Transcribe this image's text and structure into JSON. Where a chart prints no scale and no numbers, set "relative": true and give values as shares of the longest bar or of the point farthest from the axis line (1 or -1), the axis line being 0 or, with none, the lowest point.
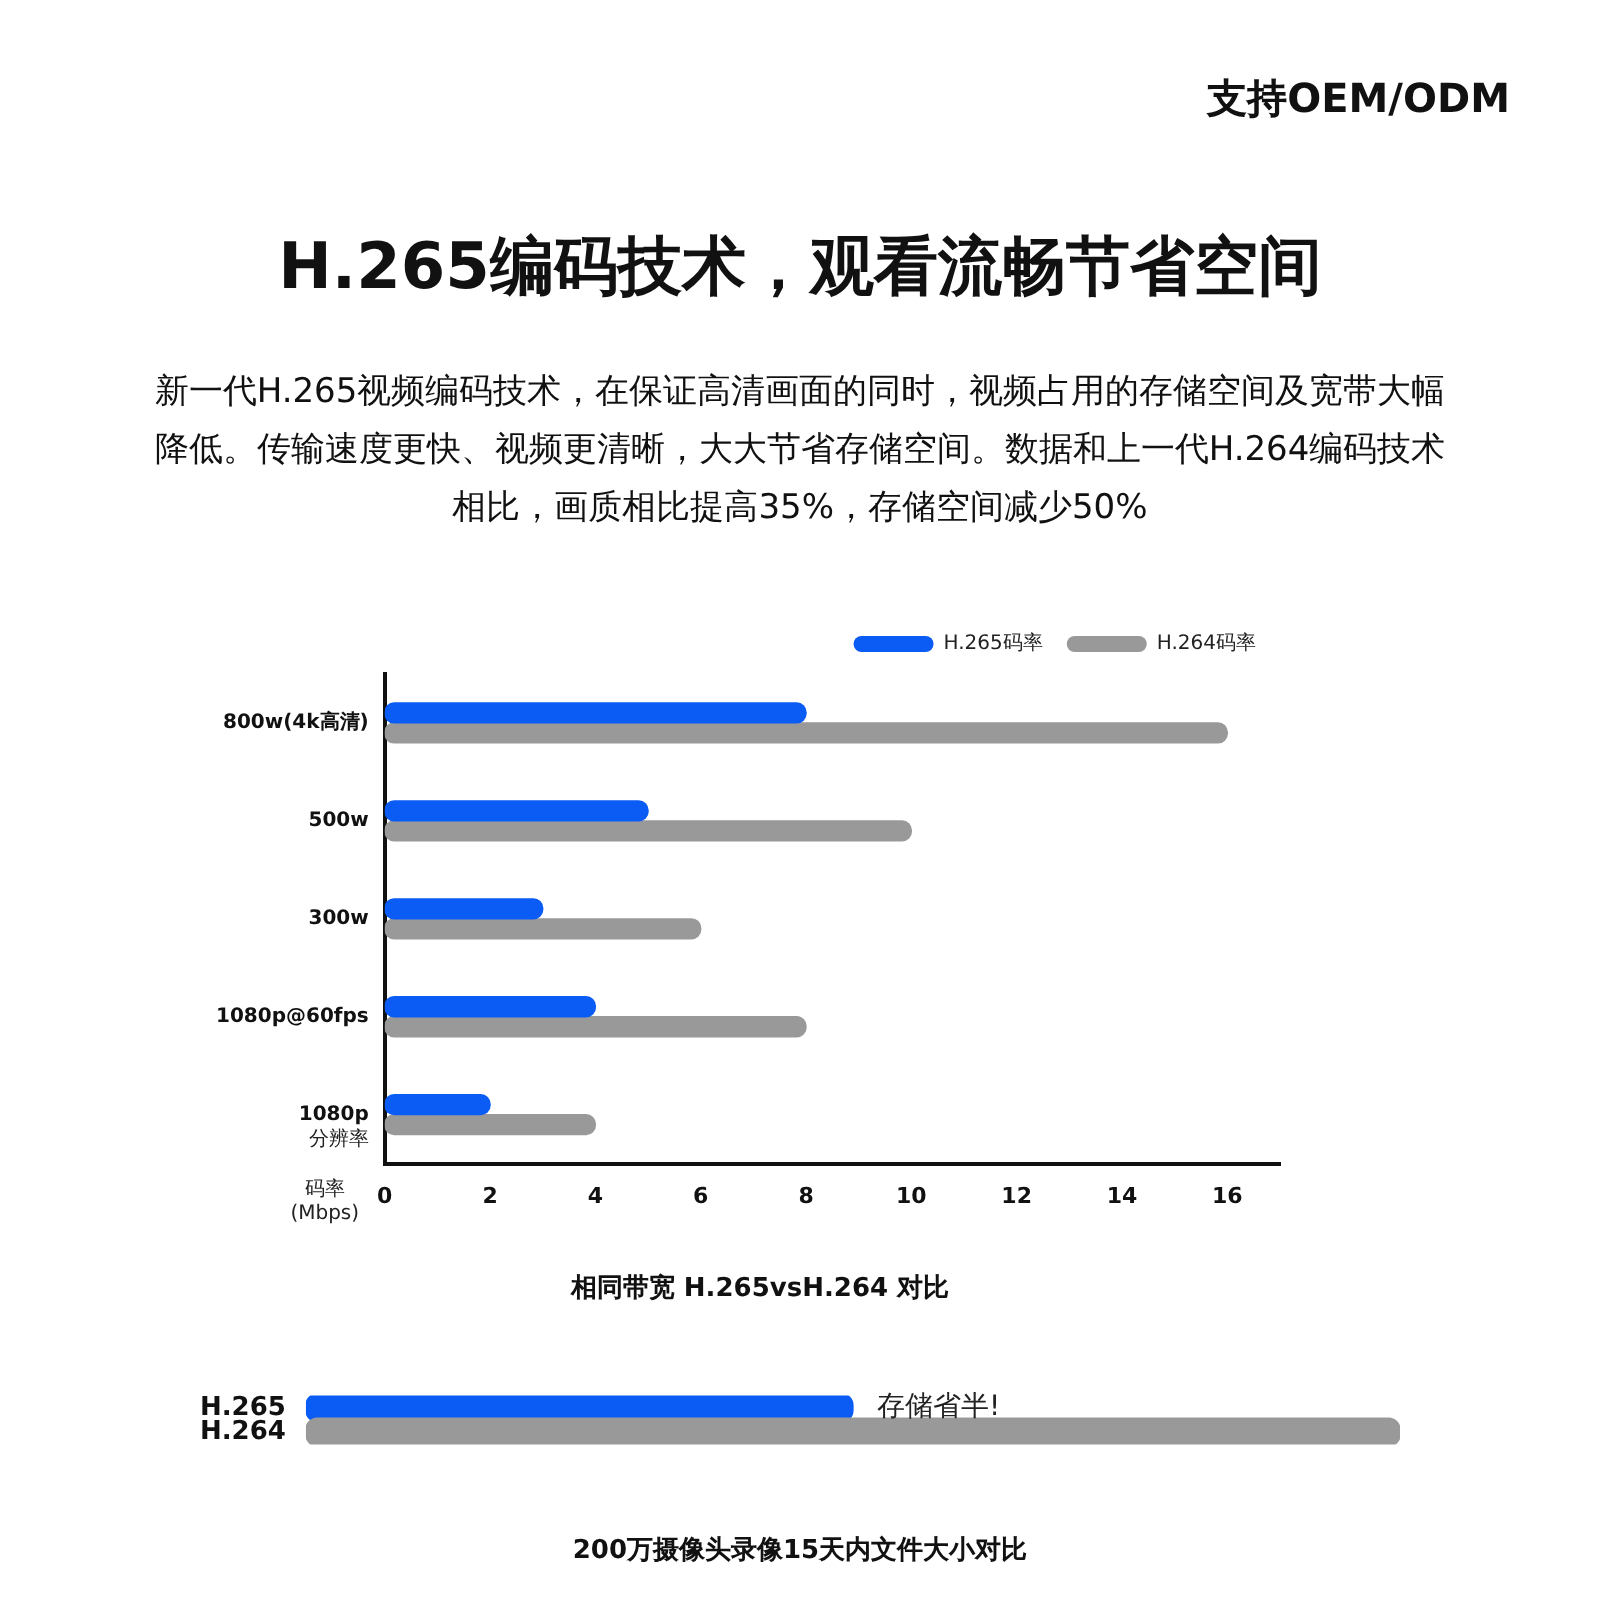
{
  "chart_data": [
    {
      "type": "bar",
      "orientation": "horizontal",
      "title": "H.265编码技术，观看流畅节省空间",
      "subtitle": "新一代H.265视频编码技术，在保证高清画面的同时，视频占用的存储空间及宽带大幅降低。传输速度更快、视频更清晰，大大节省存储空间。数据和上一代H.264编码技术相比，画质相比提高35%，存储空间减少50%",
      "annotations": [
        "支持OEM/ODM",
        "相同带宽 H.265vsH.264 对比"
      ],
      "xlabel": "码率 (Mbps)",
      "ylabel": "分辨率",
      "categories": [
        "800w(4k高清)",
        "500w",
        "300w",
        "1080p@60fps",
        "1080p"
      ],
      "series": [
        {
          "name": "H.265码率",
          "color": "#0a5cf5",
          "values": [
            8,
            5,
            3,
            4,
            2
          ]
        },
        {
          "name": "H.264码率",
          "color": "#999999",
          "values": [
            16,
            10,
            6,
            8,
            4
          ]
        }
      ],
      "xlim": [
        0,
        17
      ],
      "xticks": [
        0,
        2,
        4,
        6,
        8,
        10,
        12,
        14,
        16
      ],
      "legend": "top right",
      "grid": false
    },
    {
      "type": "bar",
      "orientation": "horizontal",
      "relative": true,
      "categories": [
        "H.265",
        "H.264"
      ],
      "colors": [
        "#0a5cf5",
        "#999999"
      ],
      "values": [
        0.5,
        1
      ],
      "annotations": [
        {
          "text": "存储省半!",
          "x": 0.5,
          "y": "H.265"
        },
        "200万摄像头录像15天内文件大小对比"
      ]
    }
  ]
}
